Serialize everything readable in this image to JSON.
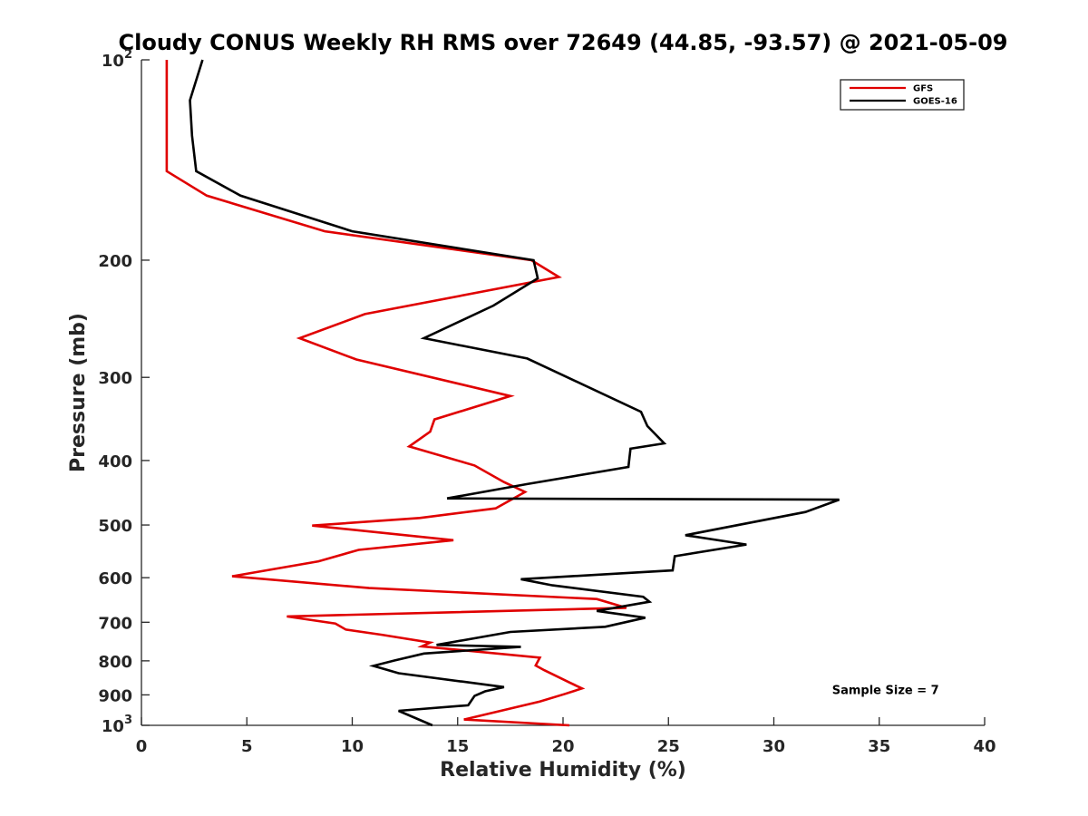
{
  "chart_data": {
    "type": "line",
    "title": "Cloudy CONUS Weekly RH RMS over 72649 (44.85, -93.57) @ 2021-05-09",
    "xlabel": "Relative Humidity (%)",
    "ylabel": "Pressure (mb)",
    "xlim": [
      0,
      40
    ],
    "ylim": [
      100,
      1000
    ],
    "yscale": "log",
    "y_reversed": true,
    "grid": false,
    "legend_position": "top-right",
    "x_ticks": [
      "0",
      "5",
      "10",
      "15",
      "20",
      "25",
      "30",
      "35",
      "40"
    ],
    "y_ticks": [
      {
        "value": 100,
        "label": "10",
        "sup": "2"
      },
      {
        "value": 200,
        "label": "200",
        "sup": ""
      },
      {
        "value": 300,
        "label": "300",
        "sup": ""
      },
      {
        "value": 400,
        "label": "400",
        "sup": ""
      },
      {
        "value": 500,
        "label": "500",
        "sup": ""
      },
      {
        "value": 600,
        "label": "600",
        "sup": ""
      },
      {
        "value": 700,
        "label": "700",
        "sup": ""
      },
      {
        "value": 800,
        "label": "800",
        "sup": ""
      },
      {
        "value": 900,
        "label": "900",
        "sup": ""
      },
      {
        "value": 1000,
        "label": "10",
        "sup": "3"
      }
    ],
    "series": [
      {
        "name": "GFS",
        "color": "#e00000",
        "points": [
          [
            1.2,
            100
          ],
          [
            1.2,
            115
          ],
          [
            1.2,
            130
          ],
          [
            1.2,
            147
          ],
          [
            3.1,
            160
          ],
          [
            8.7,
            181
          ],
          [
            18.5,
            200
          ],
          [
            19.8,
            212
          ],
          [
            10.6,
            241
          ],
          [
            7.5,
            262
          ],
          [
            10.2,
            282
          ],
          [
            17.5,
            320
          ],
          [
            13.9,
            347
          ],
          [
            13.7,
            362
          ],
          [
            12.7,
            381
          ],
          [
            15.8,
            407
          ],
          [
            17.2,
            431
          ],
          [
            18.2,
            446
          ],
          [
            16.8,
            472
          ],
          [
            13.2,
            488
          ],
          [
            8.1,
            501
          ],
          [
            14.8,
            527
          ],
          [
            10.3,
            545
          ],
          [
            8.4,
            567
          ],
          [
            4.3,
            597
          ],
          [
            10.8,
            622
          ],
          [
            21.6,
            646
          ],
          [
            23.0,
            666
          ],
          [
            6.9,
            686
          ],
          [
            9.2,
            703
          ],
          [
            9.7,
            718
          ],
          [
            11.4,
            731
          ],
          [
            13.7,
            751
          ],
          [
            13.3,
            761
          ],
          [
            18.9,
            791
          ],
          [
            18.7,
            813
          ],
          [
            19.1,
            826
          ],
          [
            20.3,
            862
          ],
          [
            20.9,
            880
          ],
          [
            20.1,
            897
          ],
          [
            18.9,
            921
          ],
          [
            15.3,
            980
          ],
          [
            20.3,
            1000
          ]
        ]
      },
      {
        "name": "GOES-16",
        "color": "#000000",
        "points": [
          [
            2.9,
            100
          ],
          [
            2.3,
            115
          ],
          [
            2.4,
            130
          ],
          [
            2.6,
            147
          ],
          [
            4.7,
            160
          ],
          [
            10.0,
            181
          ],
          [
            18.6,
            200
          ],
          [
            18.8,
            213
          ],
          [
            16.7,
            234
          ],
          [
            13.4,
            262
          ],
          [
            18.3,
            281
          ],
          [
            23.7,
            338
          ],
          [
            24.0,
            355
          ],
          [
            24.8,
            377
          ],
          [
            23.2,
            384
          ],
          [
            23.1,
            409
          ],
          [
            18.3,
            434
          ],
          [
            14.5,
            456
          ],
          [
            33.1,
            458
          ],
          [
            31.5,
            478
          ],
          [
            25.8,
            518
          ],
          [
            28.7,
            535
          ],
          [
            25.3,
            557
          ],
          [
            25.2,
            585
          ],
          [
            18.0,
            603
          ],
          [
            19.5,
            616
          ],
          [
            23.8,
            641
          ],
          [
            24.1,
            652
          ],
          [
            21.6,
            673
          ],
          [
            23.9,
            689
          ],
          [
            22.0,
            711
          ],
          [
            17.5,
            724
          ],
          [
            14.0,
            757
          ],
          [
            18.0,
            762
          ],
          [
            13.4,
            780
          ],
          [
            12.0,
            799
          ],
          [
            11.0,
            814
          ],
          [
            12.2,
            835
          ],
          [
            17.2,
            876
          ],
          [
            16.3,
            889
          ],
          [
            15.8,
            903
          ],
          [
            15.5,
            933
          ],
          [
            12.2,
            951
          ],
          [
            13.8,
            1000
          ]
        ]
      }
    ],
    "annotations": [
      {
        "text": "Sample Size = 7",
        "x": 35.3,
        "y": 898
      }
    ]
  }
}
